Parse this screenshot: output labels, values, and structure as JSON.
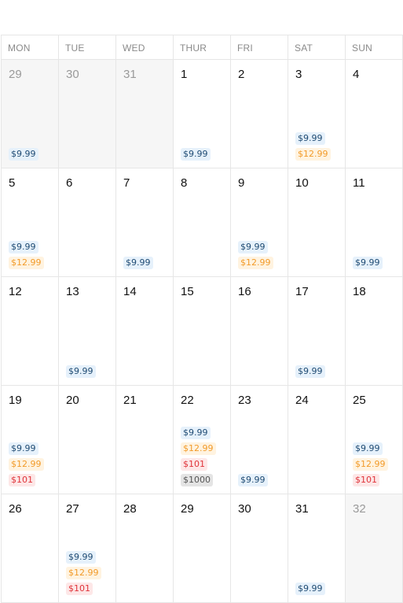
{
  "weekdays": [
    "MON",
    "TUE",
    "WED",
    "THUR",
    "FRI",
    "SAT",
    "SUN"
  ],
  "days": [
    {
      "num": "29",
      "muted": true,
      "badges": [
        {
          "text": "$9.99",
          "color": "blue"
        }
      ]
    },
    {
      "num": "30",
      "muted": true,
      "badges": []
    },
    {
      "num": "31",
      "muted": true,
      "badges": []
    },
    {
      "num": "1",
      "muted": false,
      "badges": [
        {
          "text": "$9.99",
          "color": "blue"
        }
      ]
    },
    {
      "num": "2",
      "muted": false,
      "badges": []
    },
    {
      "num": "3",
      "muted": false,
      "badges": [
        {
          "text": "$9.99",
          "color": "blue"
        },
        {
          "text": "$12.99",
          "color": "orange"
        }
      ]
    },
    {
      "num": "4",
      "muted": false,
      "badges": []
    },
    {
      "num": "5",
      "muted": false,
      "badges": [
        {
          "text": "$9.99",
          "color": "blue"
        },
        {
          "text": "$12.99",
          "color": "orange"
        }
      ]
    },
    {
      "num": "6",
      "muted": false,
      "badges": []
    },
    {
      "num": "7",
      "muted": false,
      "badges": [
        {
          "text": "$9.99",
          "color": "blue"
        }
      ]
    },
    {
      "num": "8",
      "muted": false,
      "badges": []
    },
    {
      "num": "9",
      "muted": false,
      "badges": [
        {
          "text": "$9.99",
          "color": "blue"
        },
        {
          "text": "$12.99",
          "color": "orange"
        }
      ]
    },
    {
      "num": "10",
      "muted": false,
      "badges": []
    },
    {
      "num": "11",
      "muted": false,
      "badges": [
        {
          "text": "$9.99",
          "color": "blue"
        }
      ]
    },
    {
      "num": "12",
      "muted": false,
      "badges": []
    },
    {
      "num": "13",
      "muted": false,
      "badges": [
        {
          "text": "$9.99",
          "color": "blue"
        }
      ]
    },
    {
      "num": "14",
      "muted": false,
      "badges": []
    },
    {
      "num": "15",
      "muted": false,
      "badges": []
    },
    {
      "num": "16",
      "muted": false,
      "badges": []
    },
    {
      "num": "17",
      "muted": false,
      "badges": [
        {
          "text": "$9.99",
          "color": "blue"
        }
      ]
    },
    {
      "num": "18",
      "muted": false,
      "badges": []
    },
    {
      "num": "19",
      "muted": false,
      "badges": [
        {
          "text": "$9.99",
          "color": "blue"
        },
        {
          "text": "$12.99",
          "color": "orange"
        },
        {
          "text": "$101",
          "color": "red"
        }
      ]
    },
    {
      "num": "20",
      "muted": false,
      "badges": []
    },
    {
      "num": "21",
      "muted": false,
      "badges": []
    },
    {
      "num": "22",
      "muted": false,
      "badges": [
        {
          "text": "$9.99",
          "color": "blue"
        },
        {
          "text": "$12.99",
          "color": "orange"
        },
        {
          "text": "$101",
          "color": "red"
        },
        {
          "text": "$1000",
          "color": "gray"
        }
      ]
    },
    {
      "num": "23",
      "muted": false,
      "badges": [
        {
          "text": "$9.99",
          "color": "blue"
        }
      ]
    },
    {
      "num": "24",
      "muted": false,
      "badges": []
    },
    {
      "num": "25",
      "muted": false,
      "badges": [
        {
          "text": "$9.99",
          "color": "blue"
        },
        {
          "text": "$12.99",
          "color": "orange"
        },
        {
          "text": "$101",
          "color": "red"
        }
      ]
    },
    {
      "num": "26",
      "muted": false,
      "badges": []
    },
    {
      "num": "27",
      "muted": false,
      "badges": [
        {
          "text": "$9.99",
          "color": "blue"
        },
        {
          "text": "$12.99",
          "color": "orange"
        },
        {
          "text": "$101",
          "color": "red"
        }
      ]
    },
    {
      "num": "28",
      "muted": false,
      "badges": []
    },
    {
      "num": "29",
      "muted": false,
      "badges": []
    },
    {
      "num": "30",
      "muted": false,
      "badges": []
    },
    {
      "num": "31",
      "muted": false,
      "badges": [
        {
          "text": "$9.99",
          "color": "blue"
        }
      ]
    },
    {
      "num": "32",
      "muted": true,
      "badges": []
    }
  ]
}
